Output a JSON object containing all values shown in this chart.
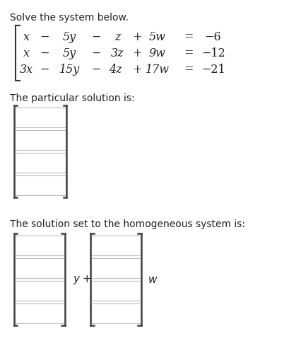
{
  "title": "Solve the system below.",
  "equations": [
    "x  −  5y  −  z  +  5w  =  −6",
    "x  −  5y  −  3z  +  9w  =  −12",
    "3x  −  15y  −  4z  +  17w  =  −21"
  ],
  "eq_line1": [
    "x",
    "−",
    "5y",
    "−",
    "z",
    "+",
    "5w",
    "=",
    "−6"
  ],
  "eq_line2": [
    "x",
    "−",
    "5y",
    "−",
    "3z",
    "+",
    "9w",
    "=",
    "−12"
  ],
  "eq_line3": [
    "3x",
    "−",
    "15y",
    "−",
    "4z",
    "+",
    "17w",
    "=",
    "−21"
  ],
  "particular_label": "The particular solution is:",
  "homogeneous_label": "The solution set to the homogeneous system is:",
  "y_label": "y +",
  "w_label": "w",
  "box_color": "#ffffff",
  "box_edge_color": "#aaaaaa",
  "bracket_color": "#333333",
  "text_color": "#222222",
  "background_color": "#ffffff",
  "font_size_title": 10,
  "font_size_eq": 11,
  "font_size_label": 10
}
